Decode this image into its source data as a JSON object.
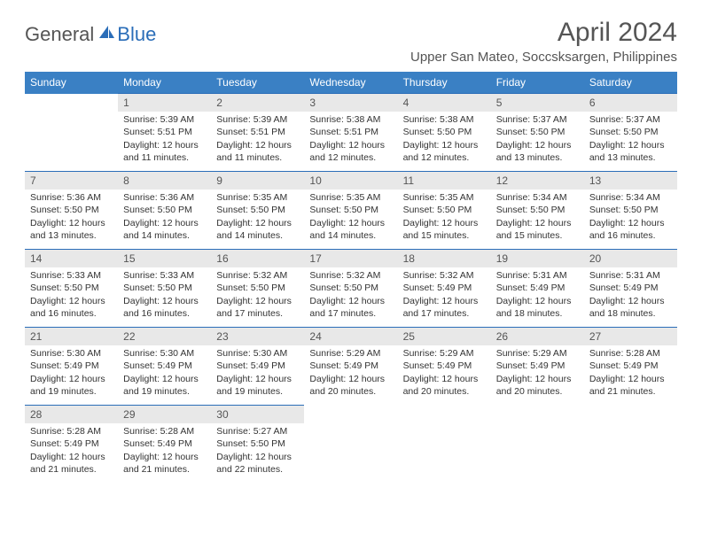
{
  "logo": {
    "text1": "General",
    "text2": "Blue"
  },
  "header": {
    "month_title": "April 2024",
    "location": "Upper San Mateo, Soccsksargen, Philippines"
  },
  "colors": {
    "header_bg": "#3a80c4",
    "border": "#2a6db8",
    "logo_gray": "#555555",
    "logo_blue": "#2a6db8",
    "daynum_bg": "#e8e8e8",
    "text": "#333333"
  },
  "typography": {
    "title_fontsize": 30,
    "location_fontsize": 15,
    "th_fontsize": 12,
    "cell_fontsize": 10.5,
    "daynum_fontsize": 12
  },
  "weekdays": [
    "Sunday",
    "Monday",
    "Tuesday",
    "Wednesday",
    "Thursday",
    "Friday",
    "Saturday"
  ],
  "weeks": [
    [
      null,
      {
        "d": "1",
        "sr": "Sunrise: 5:39 AM",
        "ss": "Sunset: 5:51 PM",
        "dl1": "Daylight: 12 hours",
        "dl2": "and 11 minutes."
      },
      {
        "d": "2",
        "sr": "Sunrise: 5:39 AM",
        "ss": "Sunset: 5:51 PM",
        "dl1": "Daylight: 12 hours",
        "dl2": "and 11 minutes."
      },
      {
        "d": "3",
        "sr": "Sunrise: 5:38 AM",
        "ss": "Sunset: 5:51 PM",
        "dl1": "Daylight: 12 hours",
        "dl2": "and 12 minutes."
      },
      {
        "d": "4",
        "sr": "Sunrise: 5:38 AM",
        "ss": "Sunset: 5:50 PM",
        "dl1": "Daylight: 12 hours",
        "dl2": "and 12 minutes."
      },
      {
        "d": "5",
        "sr": "Sunrise: 5:37 AM",
        "ss": "Sunset: 5:50 PM",
        "dl1": "Daylight: 12 hours",
        "dl2": "and 13 minutes."
      },
      {
        "d": "6",
        "sr": "Sunrise: 5:37 AM",
        "ss": "Sunset: 5:50 PM",
        "dl1": "Daylight: 12 hours",
        "dl2": "and 13 minutes."
      }
    ],
    [
      {
        "d": "7",
        "sr": "Sunrise: 5:36 AM",
        "ss": "Sunset: 5:50 PM",
        "dl1": "Daylight: 12 hours",
        "dl2": "and 13 minutes."
      },
      {
        "d": "8",
        "sr": "Sunrise: 5:36 AM",
        "ss": "Sunset: 5:50 PM",
        "dl1": "Daylight: 12 hours",
        "dl2": "and 14 minutes."
      },
      {
        "d": "9",
        "sr": "Sunrise: 5:35 AM",
        "ss": "Sunset: 5:50 PM",
        "dl1": "Daylight: 12 hours",
        "dl2": "and 14 minutes."
      },
      {
        "d": "10",
        "sr": "Sunrise: 5:35 AM",
        "ss": "Sunset: 5:50 PM",
        "dl1": "Daylight: 12 hours",
        "dl2": "and 14 minutes."
      },
      {
        "d": "11",
        "sr": "Sunrise: 5:35 AM",
        "ss": "Sunset: 5:50 PM",
        "dl1": "Daylight: 12 hours",
        "dl2": "and 15 minutes."
      },
      {
        "d": "12",
        "sr": "Sunrise: 5:34 AM",
        "ss": "Sunset: 5:50 PM",
        "dl1": "Daylight: 12 hours",
        "dl2": "and 15 minutes."
      },
      {
        "d": "13",
        "sr": "Sunrise: 5:34 AM",
        "ss": "Sunset: 5:50 PM",
        "dl1": "Daylight: 12 hours",
        "dl2": "and 16 minutes."
      }
    ],
    [
      {
        "d": "14",
        "sr": "Sunrise: 5:33 AM",
        "ss": "Sunset: 5:50 PM",
        "dl1": "Daylight: 12 hours",
        "dl2": "and 16 minutes."
      },
      {
        "d": "15",
        "sr": "Sunrise: 5:33 AM",
        "ss": "Sunset: 5:50 PM",
        "dl1": "Daylight: 12 hours",
        "dl2": "and 16 minutes."
      },
      {
        "d": "16",
        "sr": "Sunrise: 5:32 AM",
        "ss": "Sunset: 5:50 PM",
        "dl1": "Daylight: 12 hours",
        "dl2": "and 17 minutes."
      },
      {
        "d": "17",
        "sr": "Sunrise: 5:32 AM",
        "ss": "Sunset: 5:50 PM",
        "dl1": "Daylight: 12 hours",
        "dl2": "and 17 minutes."
      },
      {
        "d": "18",
        "sr": "Sunrise: 5:32 AM",
        "ss": "Sunset: 5:49 PM",
        "dl1": "Daylight: 12 hours",
        "dl2": "and 17 minutes."
      },
      {
        "d": "19",
        "sr": "Sunrise: 5:31 AM",
        "ss": "Sunset: 5:49 PM",
        "dl1": "Daylight: 12 hours",
        "dl2": "and 18 minutes."
      },
      {
        "d": "20",
        "sr": "Sunrise: 5:31 AM",
        "ss": "Sunset: 5:49 PM",
        "dl1": "Daylight: 12 hours",
        "dl2": "and 18 minutes."
      }
    ],
    [
      {
        "d": "21",
        "sr": "Sunrise: 5:30 AM",
        "ss": "Sunset: 5:49 PM",
        "dl1": "Daylight: 12 hours",
        "dl2": "and 19 minutes."
      },
      {
        "d": "22",
        "sr": "Sunrise: 5:30 AM",
        "ss": "Sunset: 5:49 PM",
        "dl1": "Daylight: 12 hours",
        "dl2": "and 19 minutes."
      },
      {
        "d": "23",
        "sr": "Sunrise: 5:30 AM",
        "ss": "Sunset: 5:49 PM",
        "dl1": "Daylight: 12 hours",
        "dl2": "and 19 minutes."
      },
      {
        "d": "24",
        "sr": "Sunrise: 5:29 AM",
        "ss": "Sunset: 5:49 PM",
        "dl1": "Daylight: 12 hours",
        "dl2": "and 20 minutes."
      },
      {
        "d": "25",
        "sr": "Sunrise: 5:29 AM",
        "ss": "Sunset: 5:49 PM",
        "dl1": "Daylight: 12 hours",
        "dl2": "and 20 minutes."
      },
      {
        "d": "26",
        "sr": "Sunrise: 5:29 AM",
        "ss": "Sunset: 5:49 PM",
        "dl1": "Daylight: 12 hours",
        "dl2": "and 20 minutes."
      },
      {
        "d": "27",
        "sr": "Sunrise: 5:28 AM",
        "ss": "Sunset: 5:49 PM",
        "dl1": "Daylight: 12 hours",
        "dl2": "and 21 minutes."
      }
    ],
    [
      {
        "d": "28",
        "sr": "Sunrise: 5:28 AM",
        "ss": "Sunset: 5:49 PM",
        "dl1": "Daylight: 12 hours",
        "dl2": "and 21 minutes."
      },
      {
        "d": "29",
        "sr": "Sunrise: 5:28 AM",
        "ss": "Sunset: 5:49 PM",
        "dl1": "Daylight: 12 hours",
        "dl2": "and 21 minutes."
      },
      {
        "d": "30",
        "sr": "Sunrise: 5:27 AM",
        "ss": "Sunset: 5:50 PM",
        "dl1": "Daylight: 12 hours",
        "dl2": "and 22 minutes."
      },
      null,
      null,
      null,
      null
    ]
  ]
}
